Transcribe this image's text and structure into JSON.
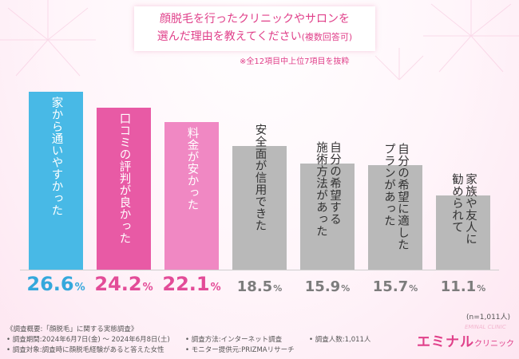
{
  "title": {
    "line1": "顔脱毛を行ったクリニックやサロンを",
    "line2": "選んだ理由を教えてください",
    "line2_sub": "(複数回答可)"
  },
  "note": "※全12項目中上位7項目を抜粋",
  "colors": {
    "bar1": "#48b9e6",
    "bar2": "#e85aa5",
    "bar3": "#f088c3",
    "gray": "#b9b9b9",
    "pct1": "#35a8dc",
    "pct_pink": "#e34c98",
    "pct_gray": "#7c7c7c",
    "accent": "#e0408a"
  },
  "chart_data": {
    "type": "bar",
    "unit": "%",
    "categories": [
      "家から通いやすかった",
      "口コミの評判が良かった",
      "料金が安かった",
      "安全面が信用できた",
      "自分の希望する施術方法があった",
      "自分の希望に適したプランがあった",
      "家族や友人に勧められて"
    ],
    "values": [
      26.6,
      24.2,
      22.1,
      18.5,
      15.9,
      15.7,
      11.1
    ],
    "value_labels": [
      {
        "num": "26.6",
        "unit": "%"
      },
      {
        "num": "24.2",
        "unit": "%"
      },
      {
        "num": "22.1",
        "unit": "%"
      },
      {
        "num": "18.5",
        "unit": "%"
      },
      {
        "num": "15.9",
        "unit": "%"
      },
      {
        "num": "15.7",
        "unit": "%"
      },
      {
        "num": "11.1",
        "unit": "%"
      }
    ],
    "bar_text": [
      "家から通いやすかった",
      "口コミの評判が良かった",
      "料金が安かった",
      "安全面が信用できた",
      "自分の希望する\n施術方法があった",
      "自分の希望に適した\nプランがあった",
      "家族や友人に\n勧められて"
    ]
  },
  "sample_size": "(n=1,011人)",
  "footer": {
    "overview": "《調査概要:「顔脱毛」に関する実態調査》",
    "period": "• 調査期間:2024年6月7日(金) ～ 2024年6月8日(土)",
    "target": "• 調査対象:調査時に顔脱毛経験があると答えた女性",
    "method": "• 調査方法:インターネット調査",
    "provider": "• モニター提供元:PRIZMAリサーチ",
    "count": "• 調査人数:1,011人"
  },
  "logo": {
    "main": "エミナル",
    "sub": "クリニック",
    "ghost": "EMINAL CLINIC"
  }
}
